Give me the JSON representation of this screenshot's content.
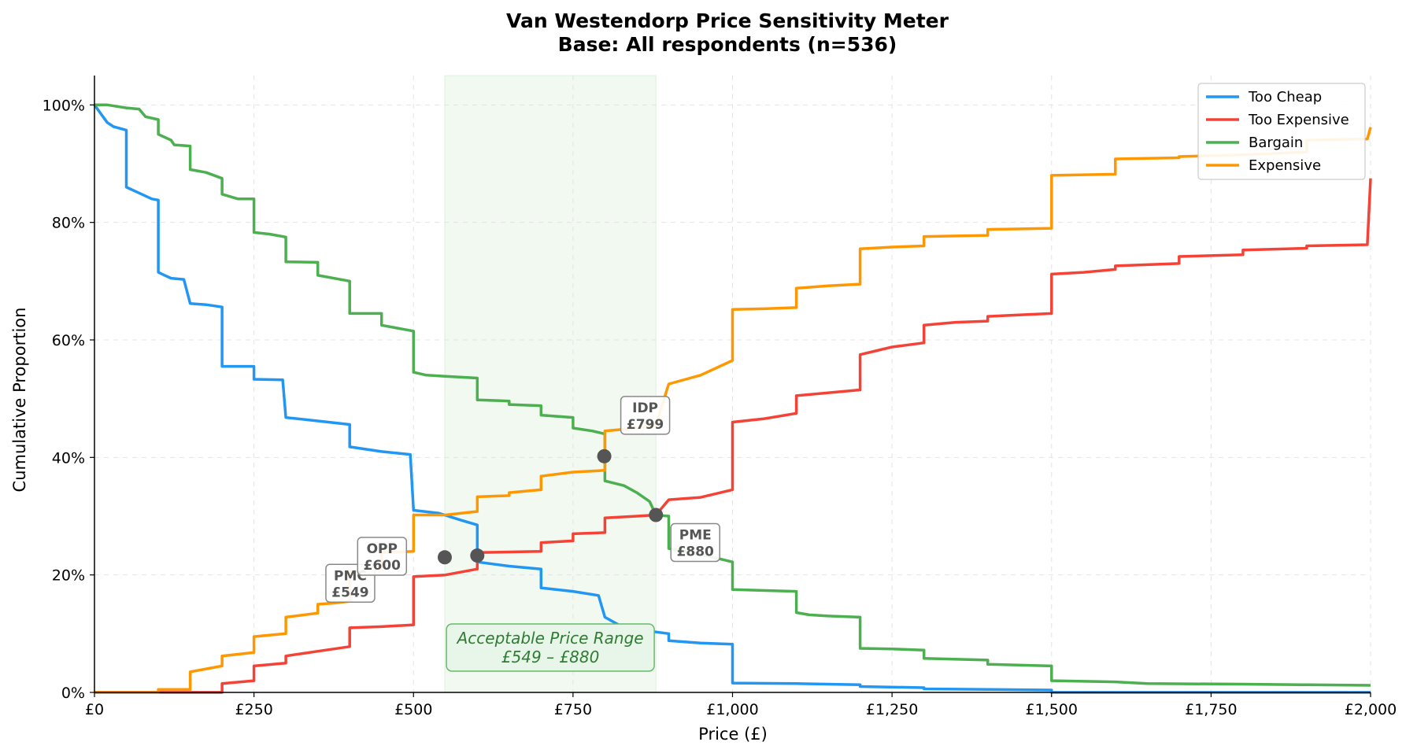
{
  "chart_data": {
    "type": "line",
    "title_line1": "Van Westendorp Price Sensitivity Meter",
    "title_line2": "Base: All respondents (n=536)",
    "xlabel": "Price (£)",
    "ylabel": "Cumulative Proportion",
    "xlim": [
      0,
      2000
    ],
    "ylim": [
      0,
      1.05
    ],
    "x_ticks": [
      0,
      250,
      500,
      750,
      1000,
      1250,
      1500,
      1750,
      2000
    ],
    "x_tick_labels": [
      "£0",
      "£250",
      "£500",
      "£750",
      "£1,000",
      "£1,250",
      "£1,500",
      "£1,750",
      "£2,000"
    ],
    "y_ticks": [
      0,
      0.2,
      0.4,
      0.6,
      0.8,
      1.0
    ],
    "y_tick_labels": [
      "0%",
      "20%",
      "40%",
      "60%",
      "80%",
      "100%"
    ],
    "grid": true,
    "legend_position": "top-right",
    "series": [
      {
        "name": "Too Cheap",
        "color": "#2196F3",
        "points": [
          [
            0,
            1.0
          ],
          [
            10,
            0.985
          ],
          [
            20,
            0.97
          ],
          [
            30,
            0.963
          ],
          [
            40,
            0.96
          ],
          [
            50,
            0.957
          ],
          [
            50,
            0.86
          ],
          [
            70,
            0.85
          ],
          [
            90,
            0.84
          ],
          [
            100,
            0.838
          ],
          [
            100,
            0.715
          ],
          [
            110,
            0.71
          ],
          [
            120,
            0.705
          ],
          [
            140,
            0.703
          ],
          [
            150,
            0.662
          ],
          [
            175,
            0.66
          ],
          [
            200,
            0.656
          ],
          [
            200,
            0.555
          ],
          [
            250,
            0.555
          ],
          [
            250,
            0.533
          ],
          [
            295,
            0.532
          ],
          [
            300,
            0.468
          ],
          [
            350,
            0.462
          ],
          [
            400,
            0.456
          ],
          [
            400,
            0.418
          ],
          [
            450,
            0.41
          ],
          [
            495,
            0.405
          ],
          [
            500,
            0.31
          ],
          [
            540,
            0.305
          ],
          [
            575,
            0.293
          ],
          [
            600,
            0.285
          ],
          [
            600,
            0.222
          ],
          [
            650,
            0.215
          ],
          [
            700,
            0.21
          ],
          [
            700,
            0.178
          ],
          [
            750,
            0.172
          ],
          [
            790,
            0.165
          ],
          [
            800,
            0.128
          ],
          [
            830,
            0.11
          ],
          [
            900,
            0.1
          ],
          [
            900,
            0.088
          ],
          [
            950,
            0.084
          ],
          [
            1000,
            0.082
          ],
          [
            1000,
            0.016
          ],
          [
            1100,
            0.015
          ],
          [
            1200,
            0.013
          ],
          [
            1200,
            0.01
          ],
          [
            1300,
            0.008
          ],
          [
            1300,
            0.006
          ],
          [
            1500,
            0.004
          ],
          [
            1500,
            0.0
          ],
          [
            2000,
            0.0
          ]
        ]
      },
      {
        "name": "Too Expensive",
        "color": "#F44336",
        "points": [
          [
            0,
            0.0
          ],
          [
            100,
            0.0
          ],
          [
            200,
            0.0
          ],
          [
            200,
            0.015
          ],
          [
            250,
            0.02
          ],
          [
            250,
            0.045
          ],
          [
            300,
            0.05
          ],
          [
            300,
            0.062
          ],
          [
            350,
            0.07
          ],
          [
            400,
            0.078
          ],
          [
            400,
            0.11
          ],
          [
            450,
            0.112
          ],
          [
            500,
            0.115
          ],
          [
            500,
            0.197
          ],
          [
            550,
            0.2
          ],
          [
            600,
            0.21
          ],
          [
            600,
            0.238
          ],
          [
            700,
            0.24
          ],
          [
            700,
            0.255
          ],
          [
            750,
            0.258
          ],
          [
            750,
            0.27
          ],
          [
            800,
            0.272
          ],
          [
            800,
            0.297
          ],
          [
            850,
            0.3
          ],
          [
            880,
            0.302
          ],
          [
            900,
            0.328
          ],
          [
            950,
            0.332
          ],
          [
            1000,
            0.345
          ],
          [
            1000,
            0.46
          ],
          [
            1050,
            0.466
          ],
          [
            1100,
            0.475
          ],
          [
            1100,
            0.505
          ],
          [
            1200,
            0.515
          ],
          [
            1200,
            0.575
          ],
          [
            1250,
            0.588
          ],
          [
            1300,
            0.595
          ],
          [
            1300,
            0.625
          ],
          [
            1350,
            0.63
          ],
          [
            1400,
            0.632
          ],
          [
            1400,
            0.64
          ],
          [
            1500,
            0.645
          ],
          [
            1500,
            0.712
          ],
          [
            1550,
            0.715
          ],
          [
            1600,
            0.72
          ],
          [
            1600,
            0.726
          ],
          [
            1700,
            0.73
          ],
          [
            1700,
            0.742
          ],
          [
            1800,
            0.745
          ],
          [
            1800,
            0.753
          ],
          [
            1900,
            0.756
          ],
          [
            1900,
            0.76
          ],
          [
            1995,
            0.762
          ],
          [
            2000,
            0.875
          ]
        ]
      },
      {
        "name": "Bargain",
        "color": "#4CAF50",
        "points": [
          [
            0,
            1.0
          ],
          [
            20,
            1.0
          ],
          [
            50,
            0.995
          ],
          [
            70,
            0.993
          ],
          [
            80,
            0.98
          ],
          [
            100,
            0.975
          ],
          [
            100,
            0.95
          ],
          [
            120,
            0.94
          ],
          [
            125,
            0.932
          ],
          [
            150,
            0.93
          ],
          [
            150,
            0.89
          ],
          [
            175,
            0.885
          ],
          [
            200,
            0.875
          ],
          [
            200,
            0.848
          ],
          [
            225,
            0.84
          ],
          [
            250,
            0.84
          ],
          [
            250,
            0.783
          ],
          [
            275,
            0.78
          ],
          [
            300,
            0.775
          ],
          [
            300,
            0.733
          ],
          [
            350,
            0.732
          ],
          [
            350,
            0.71
          ],
          [
            400,
            0.7
          ],
          [
            400,
            0.645
          ],
          [
            450,
            0.645
          ],
          [
            450,
            0.625
          ],
          [
            500,
            0.615
          ],
          [
            500,
            0.545
          ],
          [
            520,
            0.54
          ],
          [
            550,
            0.538
          ],
          [
            600,
            0.535
          ],
          [
            600,
            0.498
          ],
          [
            650,
            0.496
          ],
          [
            650,
            0.49
          ],
          [
            700,
            0.488
          ],
          [
            700,
            0.472
          ],
          [
            750,
            0.468
          ],
          [
            750,
            0.45
          ],
          [
            780,
            0.445
          ],
          [
            800,
            0.44
          ],
          [
            800,
            0.36
          ],
          [
            830,
            0.352
          ],
          [
            850,
            0.34
          ],
          [
            870,
            0.325
          ],
          [
            880,
            0.302
          ],
          [
            900,
            0.3
          ],
          [
            900,
            0.245
          ],
          [
            950,
            0.235
          ],
          [
            1000,
            0.222
          ],
          [
            1000,
            0.175
          ],
          [
            1100,
            0.172
          ],
          [
            1100,
            0.136
          ],
          [
            1120,
            0.132
          ],
          [
            1150,
            0.13
          ],
          [
            1200,
            0.128
          ],
          [
            1200,
            0.075
          ],
          [
            1250,
            0.074
          ],
          [
            1300,
            0.072
          ],
          [
            1300,
            0.058
          ],
          [
            1400,
            0.055
          ],
          [
            1400,
            0.048
          ],
          [
            1500,
            0.045
          ],
          [
            1500,
            0.02
          ],
          [
            1600,
            0.018
          ],
          [
            1650,
            0.015
          ],
          [
            1800,
            0.014
          ],
          [
            1900,
            0.013
          ],
          [
            2000,
            0.012
          ]
        ]
      },
      {
        "name": "Expensive",
        "color": "#FF9800",
        "points": [
          [
            0,
            0.0
          ],
          [
            100,
            0.0
          ],
          [
            100,
            0.005
          ],
          [
            150,
            0.005
          ],
          [
            150,
            0.035
          ],
          [
            175,
            0.04
          ],
          [
            200,
            0.045
          ],
          [
            200,
            0.062
          ],
          [
            250,
            0.068
          ],
          [
            250,
            0.095
          ],
          [
            300,
            0.1
          ],
          [
            300,
            0.128
          ],
          [
            350,
            0.135
          ],
          [
            350,
            0.15
          ],
          [
            375,
            0.152
          ],
          [
            400,
            0.155
          ],
          [
            400,
            0.205
          ],
          [
            450,
            0.21
          ],
          [
            450,
            0.238
          ],
          [
            500,
            0.24
          ],
          [
            500,
            0.302
          ],
          [
            550,
            0.302
          ],
          [
            575,
            0.305
          ],
          [
            600,
            0.308
          ],
          [
            600,
            0.333
          ],
          [
            650,
            0.335
          ],
          [
            650,
            0.34
          ],
          [
            700,
            0.345
          ],
          [
            700,
            0.368
          ],
          [
            750,
            0.375
          ],
          [
            800,
            0.378
          ],
          [
            800,
            0.445
          ],
          [
            850,
            0.45
          ],
          [
            880,
            0.455
          ],
          [
            900,
            0.525
          ],
          [
            950,
            0.54
          ],
          [
            1000,
            0.565
          ],
          [
            1000,
            0.652
          ],
          [
            1050,
            0.653
          ],
          [
            1100,
            0.655
          ],
          [
            1100,
            0.688
          ],
          [
            1150,
            0.692
          ],
          [
            1200,
            0.695
          ],
          [
            1200,
            0.755
          ],
          [
            1250,
            0.758
          ],
          [
            1300,
            0.76
          ],
          [
            1300,
            0.776
          ],
          [
            1400,
            0.778
          ],
          [
            1400,
            0.788
          ],
          [
            1500,
            0.79
          ],
          [
            1500,
            0.88
          ],
          [
            1600,
            0.882
          ],
          [
            1600,
            0.908
          ],
          [
            1700,
            0.91
          ],
          [
            1700,
            0.912
          ],
          [
            1800,
            0.915
          ],
          [
            1900,
            0.92
          ],
          [
            1900,
            0.94
          ],
          [
            1995,
            0.942
          ],
          [
            2000,
            0.962
          ]
        ]
      }
    ],
    "price_points": [
      {
        "abbr": "PMC",
        "price": 549,
        "y": 0.23,
        "label_line1": "PMC",
        "label_line2": "£549"
      },
      {
        "abbr": "OPP",
        "price": 600,
        "y": 0.233,
        "label_line1": "OPP",
        "label_line2": "£600"
      },
      {
        "abbr": "IDP",
        "price": 799,
        "y": 0.402,
        "label_line1": "IDP",
        "label_line2": "£799"
      },
      {
        "abbr": "PME",
        "price": 880,
        "y": 0.302,
        "label_line1": "PME",
        "label_line2": "£880"
      }
    ],
    "acceptable_range": {
      "from": 549,
      "to": 880,
      "label_line1": "Acceptable Price Range",
      "label_line2": "£549 – £880"
    }
  }
}
